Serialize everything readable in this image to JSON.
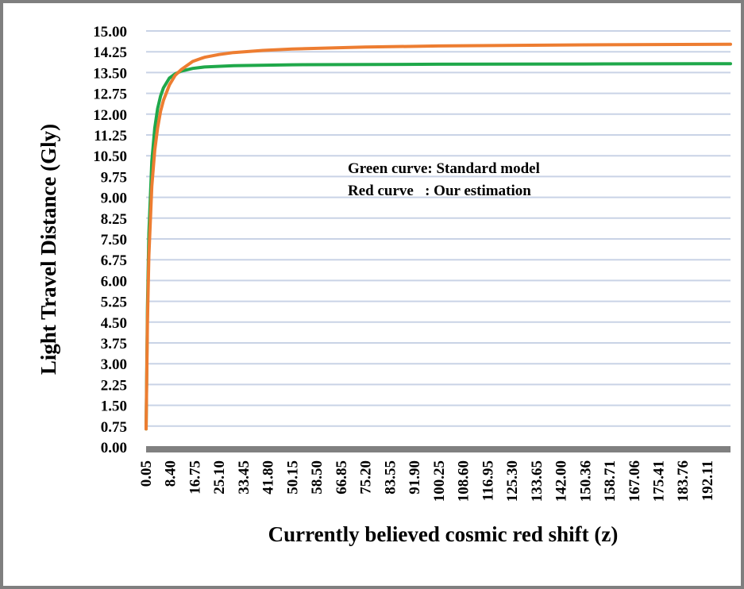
{
  "chart_data": {
    "type": "line",
    "title": "",
    "xlabel": "Currently believed cosmic red shift (z)",
    "ylabel": "Light Travel Distance (Gly)",
    "ylim": [
      0,
      15
    ],
    "xlim": [
      0.05,
      200
    ],
    "grid": true,
    "y_ticks": [
      "0.00",
      "0.75",
      "1.50",
      "2.25",
      "3.00",
      "3.75",
      "4.50",
      "5.25",
      "6.00",
      "6.75",
      "7.50",
      "8.25",
      "9.00",
      "9.75",
      "10.50",
      "11.25",
      "12.00",
      "12.75",
      "13.50",
      "14.25",
      "15.00"
    ],
    "x_ticks": [
      "0.05",
      "8.40",
      "16.75",
      "25.10",
      "33.45",
      "41.80",
      "50.15",
      "58.50",
      "66.85",
      "75.20",
      "83.55",
      "91.90",
      "100.25",
      "108.60",
      "116.95",
      "125.30",
      "133.65",
      "142.00",
      "150.36",
      "158.71",
      "167.06",
      "175.41",
      "183.76",
      "192.11"
    ],
    "annotations": [
      "Green curve: Standard model",
      "Red curve   : Our estimation"
    ],
    "series": [
      {
        "color": "#1fa84a",
        "x": [
          0.05,
          0.5,
          1,
          2,
          3,
          4,
          5,
          6,
          8,
          10,
          12,
          16,
          20,
          30,
          50,
          100,
          150,
          200
        ],
        "y": [
          0.65,
          5.0,
          7.7,
          10.3,
          11.5,
          12.2,
          12.65,
          12.95,
          13.3,
          13.45,
          13.55,
          13.65,
          13.7,
          13.75,
          13.78,
          13.8,
          13.81,
          13.82
        ]
      },
      {
        "color": "#ed7d31",
        "x": [
          0.05,
          0.5,
          1,
          2,
          3,
          4,
          5,
          6,
          8,
          10,
          12,
          16,
          20,
          25,
          30,
          40,
          50,
          75,
          100,
          150,
          200
        ],
        "y": [
          0.65,
          4.5,
          6.9,
          9.4,
          10.7,
          11.5,
          12.1,
          12.5,
          13.05,
          13.4,
          13.6,
          13.9,
          14.05,
          14.15,
          14.22,
          14.3,
          14.35,
          14.42,
          14.46,
          14.5,
          14.52
        ]
      }
    ]
  }
}
